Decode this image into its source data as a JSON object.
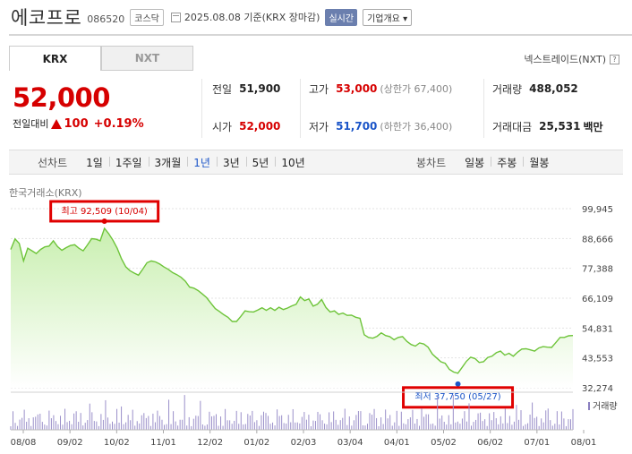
{
  "header": {
    "name": "에코프로",
    "code": "086520",
    "market": "코스닥",
    "date": "2025.08.08 기준(KRX 장마감)",
    "live": "실시간",
    "company": "기업개요"
  },
  "tabs": {
    "krx": "KRX",
    "nxt": "NXT",
    "nextrade": "넥스트레이드(NXT)"
  },
  "quote": {
    "price": "52,000",
    "change_label": "전일대비",
    "change": "100",
    "change_pct": "+0.19%"
  },
  "stats": {
    "prev_label": "전일",
    "prev": "51,900",
    "high_label": "고가",
    "high": "53,000",
    "high_sub": "(상한가 67,400)",
    "volume_label": "거래량",
    "volume": "488,052",
    "open_label": "시가",
    "open": "52,000",
    "low_label": "저가",
    "low": "51,700",
    "low_sub": "(하한가 36,400)",
    "amount_label": "거래대금",
    "amount": "25,531",
    "amount_unit": "백만"
  },
  "chart_controls": {
    "line_label": "선차트",
    "periods": [
      "1일",
      "1주일",
      "3개월",
      "1년",
      "3년",
      "5년",
      "10년"
    ],
    "active_period": "1년",
    "candle_label": "봉차트",
    "candles": [
      "일봉",
      "주봉",
      "월봉"
    ]
  },
  "source": "한국거래소(KRX)",
  "colors": {
    "up": "#d60000",
    "down": "#1b55c8",
    "line": "#6ec43a",
    "area": "#c9efb0"
  },
  "chart_data": {
    "type": "area",
    "y_ticks": [
      "99,945",
      "88,666",
      "77,388",
      "66,109",
      "54,831",
      "43,553",
      "32,274"
    ],
    "ylim": [
      32274,
      99945
    ],
    "x_ticks": [
      "08/08",
      "09/02",
      "10/02",
      "11/01",
      "12/02",
      "01/02",
      "02/03",
      "03/04",
      "04/01",
      "05/02",
      "06/02",
      "07/01",
      "08/01"
    ],
    "max_label": "최고 92,509 (10/04)",
    "min_label": "최저 37,750 (05/27)",
    "volume_legend": "거래량",
    "series": [
      {
        "values": [
          84500,
          88500,
          86800,
          80200,
          85000,
          84000,
          83000,
          84500,
          85500,
          85800,
          87800,
          85600,
          84200,
          85200,
          86000,
          86300,
          85000,
          84000,
          86200,
          88600,
          88400,
          87800,
          92509,
          90500,
          88000,
          85000,
          81000,
          78000,
          76500,
          75600,
          74800,
          77100,
          79500,
          80200,
          79800,
          79000,
          77900,
          77000,
          75800,
          75000,
          74000,
          72500,
          70300,
          69900,
          69000,
          67700,
          66300,
          64200,
          62200,
          61100,
          59900,
          58900,
          57300,
          57300,
          59200,
          61300,
          61000,
          60900,
          61600,
          62500,
          61500,
          62500,
          61500,
          62700,
          61800,
          62400,
          63200,
          63800,
          66600,
          65200,
          65800,
          63100,
          63800,
          65600,
          62600,
          60900,
          61300,
          60000,
          60500,
          59600,
          59700,
          58900,
          58500,
          52300,
          51300,
          51000,
          51700,
          53000,
          52000,
          51600,
          50400,
          51300,
          51600,
          49800,
          48600,
          48000,
          49200,
          48800,
          47600,
          45000,
          43500,
          42100,
          41500,
          39200,
          38200,
          37750,
          40000,
          42300,
          43800,
          43300,
          41800,
          42100,
          43700,
          44200,
          45500,
          46100,
          44600,
          45300,
          44200,
          45700,
          46900,
          47000,
          46600,
          46100,
          47300,
          47800,
          47600,
          47500,
          49400,
          51300,
          51300,
          51900,
          52000
        ]
      }
    ]
  }
}
